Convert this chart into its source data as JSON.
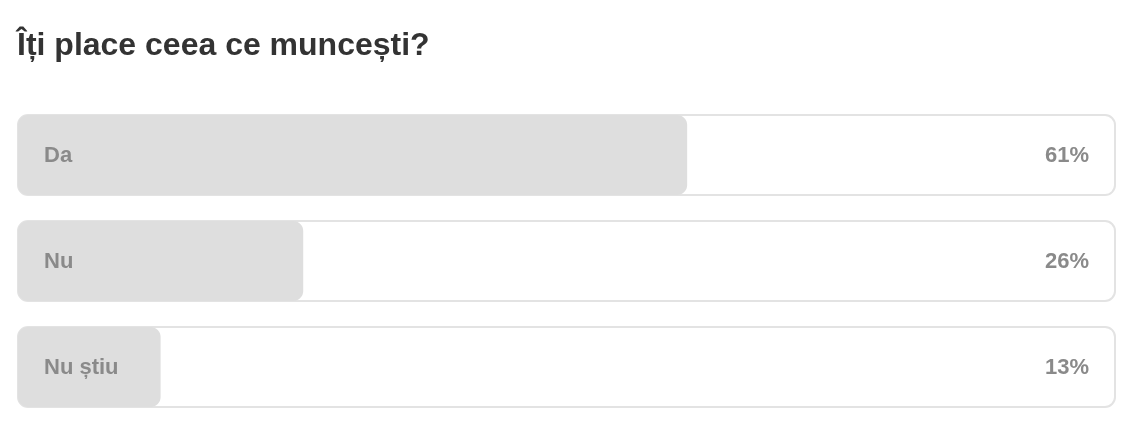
{
  "chart_data": {
    "type": "bar",
    "orientation": "horizontal",
    "title": "Îți place ceea ce muncești?",
    "categories": [
      "Da",
      "Nu",
      "Nu știu"
    ],
    "values": [
      61,
      26,
      13
    ],
    "value_labels": [
      "61%",
      "26%",
      "13%"
    ],
    "color": "#dedede",
    "xlim": [
      0,
      100
    ],
    "tick_labels": false
  }
}
